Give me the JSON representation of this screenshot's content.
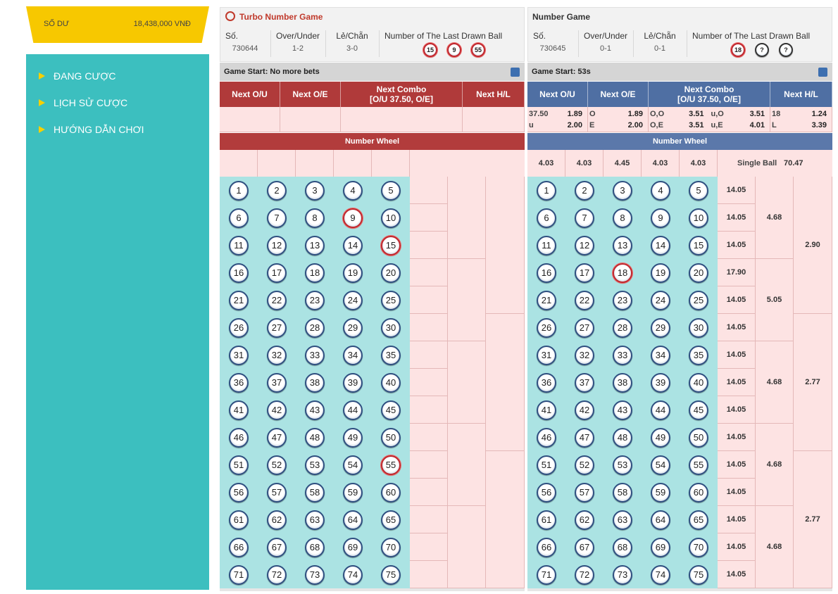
{
  "sidebar": {
    "balance_label": "SỐ DƯ",
    "balance": "18,438,000 VNĐ",
    "menu": [
      "ĐANG CƯỢC",
      "LỊCH SỬ CƯỢC",
      "HƯỚNG DẪN CHƠI"
    ]
  },
  "games": [
    {
      "title": "Turbo Number Game",
      "info_headers": [
        "Số.",
        "Over/Under",
        "Lẻ/Chẵn",
        "Number of The Last Drawn Ball"
      ],
      "round": "730644",
      "over_under": "1-2",
      "odd_even": "3-0",
      "last_drawn": [
        15,
        9,
        55
      ],
      "status": "Game Start: No more bets",
      "bet_headers": [
        "Next O/U",
        "Next O/E",
        "Next Combo",
        "Next H/L"
      ],
      "combo_detail": "[O/U 37.50, O/E]",
      "wheel_title": "Number Wheel",
      "balls": [
        1,
        2,
        3,
        4,
        5,
        6,
        7,
        8,
        9,
        10,
        11,
        12,
        13,
        14,
        15,
        16,
        17,
        18,
        19,
        20,
        21,
        22,
        23,
        24,
        25,
        26,
        27,
        28,
        29,
        30,
        31,
        32,
        33,
        34,
        35,
        36,
        37,
        38,
        39,
        40,
        41,
        42,
        43,
        44,
        45,
        46,
        47,
        48,
        49,
        50,
        51,
        52,
        53,
        54,
        55,
        56,
        57,
        58,
        59,
        60,
        61,
        62,
        63,
        64,
        65,
        66,
        67,
        68,
        69,
        70,
        71,
        72,
        73,
        74,
        75
      ]
    },
    {
      "title": "Number Game",
      "info_headers": [
        "Số.",
        "Over/Under",
        "Lẻ/Chẵn",
        "Number of The Last Drawn Ball"
      ],
      "round": "730645",
      "over_under": "0-1",
      "odd_even": "0-1",
      "last_drawn": [
        18,
        "?",
        "?"
      ],
      "status": "Game Start: 53s",
      "bet_headers": [
        "Next O/U",
        "Next O/E",
        "Next Combo",
        "Next H/L"
      ],
      "combo_detail": "[O/U 37.50, O/E]",
      "wheel_title": "Number Wheel",
      "odds": [
        [
          [
            "37.50",
            "1.89"
          ],
          [
            "u",
            "2.00"
          ]
        ],
        [
          [
            "O",
            "1.89"
          ],
          [
            "E",
            "2.00"
          ]
        ],
        [
          [
            "O,O",
            "3.51"
          ],
          [
            "u,O",
            "3.51"
          ],
          [
            "O,E",
            "3.51"
          ],
          [
            "u,E",
            "4.01"
          ]
        ],
        [
          [
            "18",
            "1.24"
          ],
          [
            "L",
            "3.39"
          ]
        ]
      ],
      "wheel_odds": [
        "4.03",
        "4.03",
        "4.45",
        "4.03",
        "4.03"
      ],
      "single_ball_label": "Single Ball",
      "single_ball": "70.47",
      "balls": [
        1,
        2,
        3,
        4,
        5,
        6,
        7,
        8,
        9,
        10,
        11,
        12,
        13,
        14,
        15,
        16,
        17,
        18,
        19,
        20,
        21,
        22,
        23,
        24,
        25,
        26,
        27,
        28,
        29,
        30,
        31,
        32,
        33,
        34,
        35,
        36,
        37,
        38,
        39,
        40,
        41,
        42,
        43,
        44,
        45,
        46,
        47,
        48,
        49,
        50,
        51,
        52,
        53,
        54,
        55,
        56,
        57,
        58,
        59,
        60,
        61,
        62,
        63,
        64,
        65,
        66,
        67,
        68,
        69,
        70,
        71,
        72,
        73,
        74,
        75
      ],
      "row_odds": [
        "14.05",
        "14.05",
        "14.05",
        "17.90",
        "14.05",
        "14.05",
        "14.05",
        "14.05",
        "14.05",
        "14.05",
        "14.05",
        "14.05",
        "14.05",
        "14.05",
        "14.05"
      ],
      "group3_odds": [
        "4.68",
        "5.05",
        "4.68",
        "4.68",
        "4.68"
      ],
      "group5_odds": [
        "2.90",
        "2.77",
        "2.77"
      ]
    }
  ]
}
